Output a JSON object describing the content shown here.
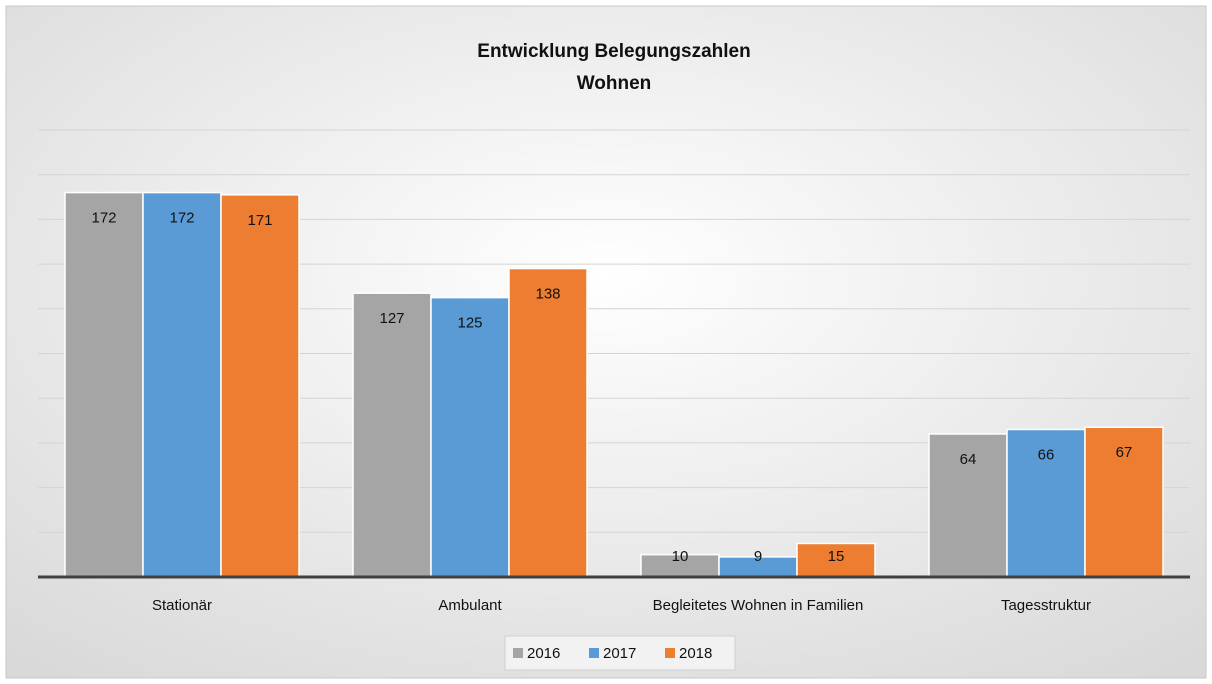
{
  "chart_data": {
    "type": "bar",
    "title": [
      "Entwicklung Belegungszahlen",
      "Wohnen"
    ],
    "categories": [
      "Stationär",
      "Ambulant",
      "Begleitetes Wohnen in Familien",
      "Tagesstruktur"
    ],
    "series": [
      {
        "name": "2016",
        "color": "#a5a5a5",
        "values": [
          172,
          127,
          10,
          64
        ]
      },
      {
        "name": "2017",
        "color": "#5b9bd5",
        "values": [
          172,
          125,
          9,
          66
        ]
      },
      {
        "name": "2018",
        "color": "#ed7d31",
        "values": [
          171,
          138,
          15,
          67
        ]
      }
    ],
    "ylim": [
      0,
      200
    ],
    "yticks": [
      0,
      20,
      40,
      60,
      80,
      100,
      120,
      140,
      160,
      180,
      200
    ],
    "grid": true,
    "legend": "bottom"
  }
}
